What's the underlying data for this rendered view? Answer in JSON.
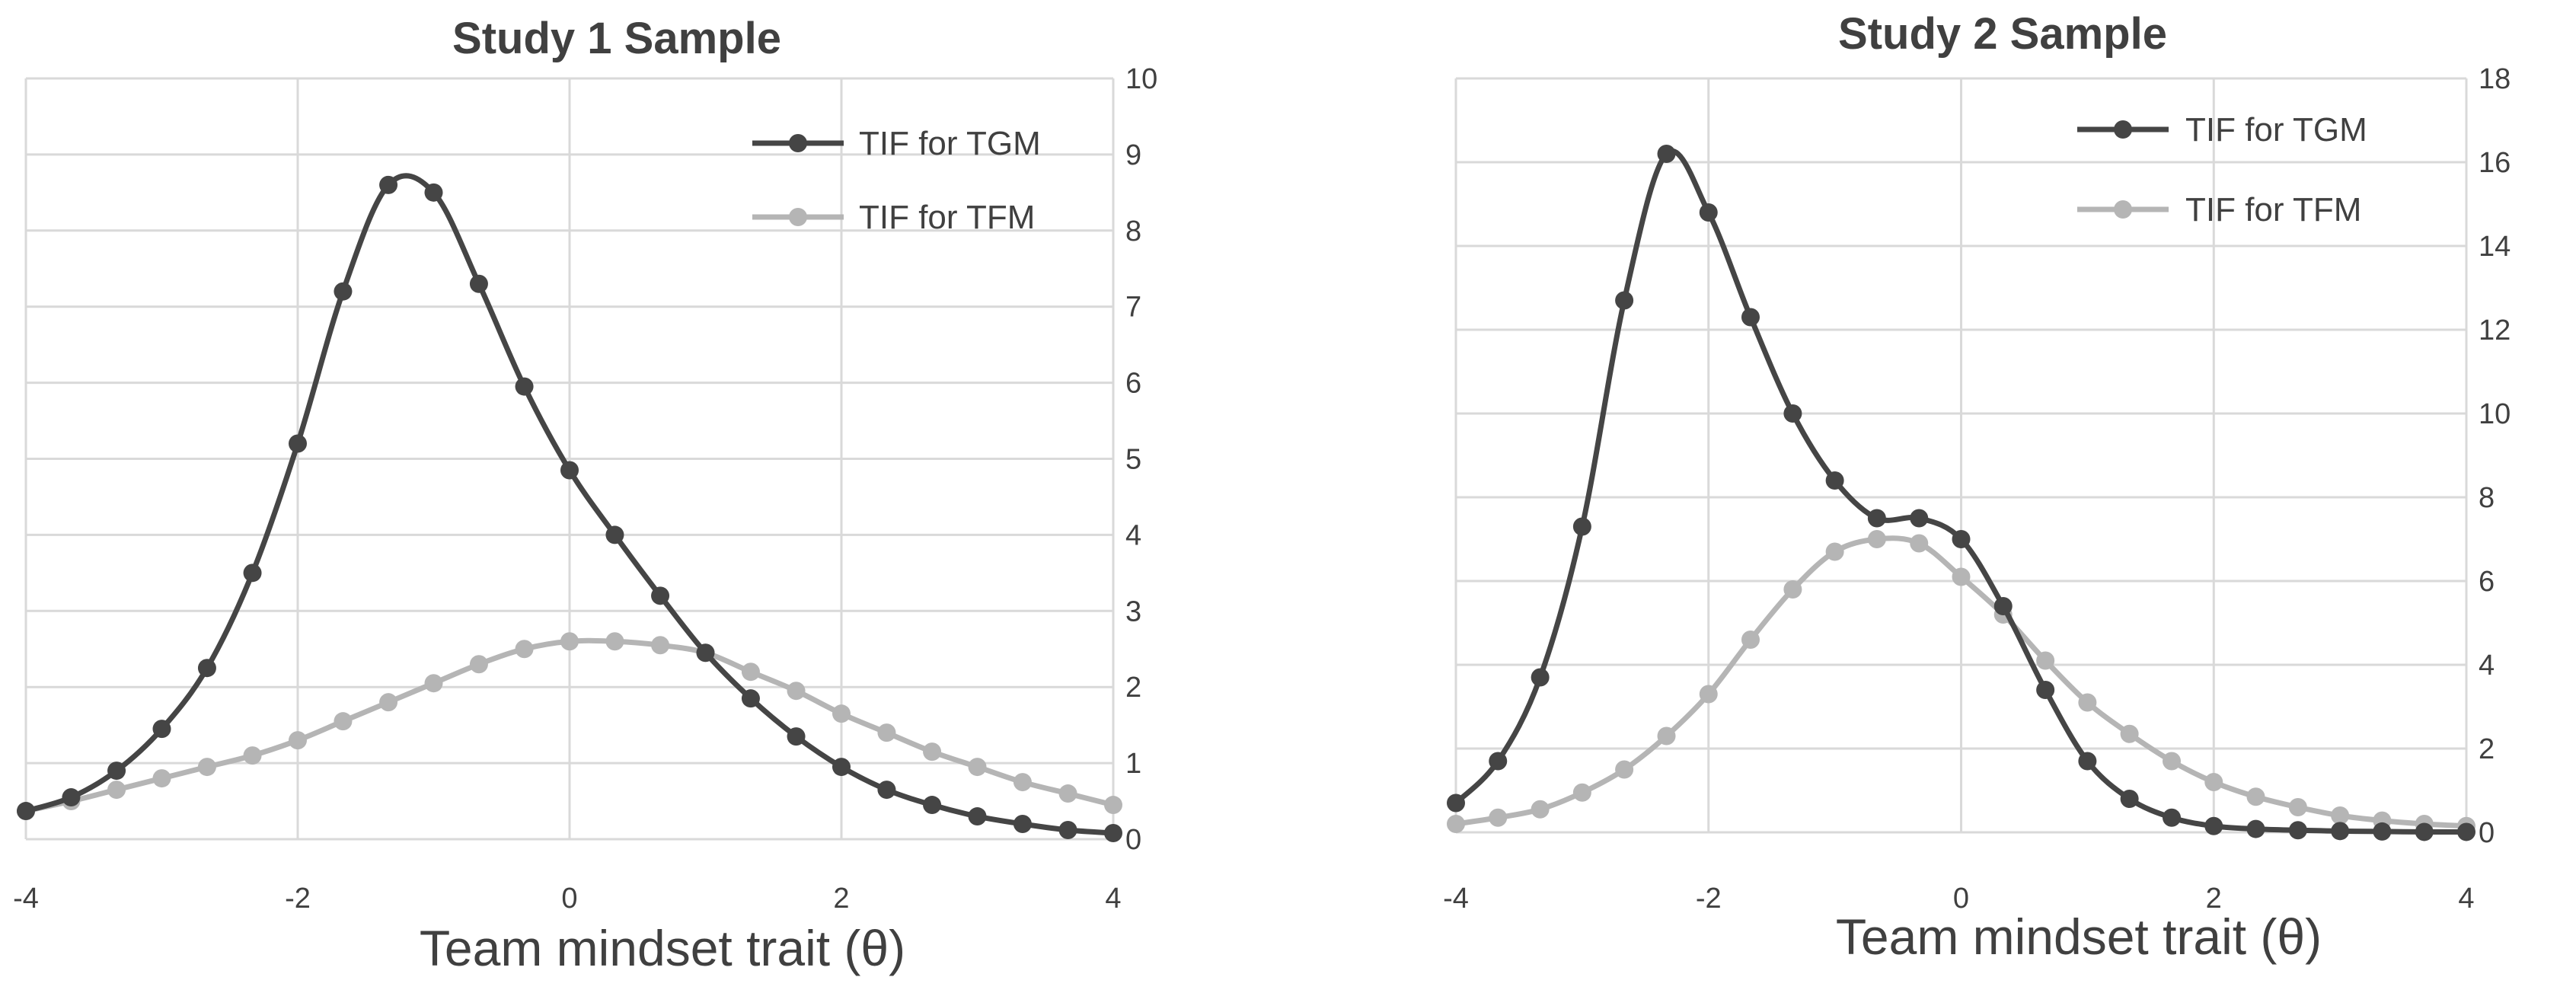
{
  "chart_data": [
    {
      "type": "line",
      "title": "Study 1 Sample",
      "xlabel": "Team mindset trait (θ)",
      "ylabel": "",
      "xlim": [
        -4,
        4
      ],
      "ylim": [
        0,
        10
      ],
      "xticks": [
        -4,
        -2,
        0,
        2,
        4
      ],
      "xtick_labels": [
        "-4",
        "-2",
        "0",
        "2",
        "4"
      ],
      "yticks": [
        0,
        1,
        2,
        3,
        4,
        5,
        6,
        7,
        8,
        9,
        10
      ],
      "ytick_labels": [
        "0",
        "1",
        "2",
        "3",
        "4",
        "5",
        "6",
        "7",
        "8",
        "9",
        "10"
      ],
      "y_axis_side": "right",
      "grid": true,
      "legend_position": "top-right",
      "x": [
        -4,
        -3.667,
        -3.333,
        -3,
        -2.667,
        -2.333,
        -2,
        -1.667,
        -1.333,
        -1,
        -0.667,
        -0.333,
        0,
        0.333,
        0.667,
        1,
        1.333,
        1.667,
        2,
        2.333,
        2.667,
        3,
        3.333,
        3.667,
        4
      ],
      "series": [
        {
          "name": "TIF for TGM",
          "color": "#454545",
          "values": [
            0.37,
            0.55,
            0.9,
            1.45,
            2.25,
            3.5,
            5.2,
            7.2,
            8.6,
            8.5,
            7.3,
            5.95,
            4.85,
            4.0,
            3.2,
            2.45,
            1.85,
            1.35,
            0.95,
            0.65,
            0.45,
            0.3,
            0.2,
            0.12,
            0.08
          ]
        },
        {
          "name": "TIF for TFM",
          "color": "#b5b5b5",
          "values": [
            0.37,
            0.5,
            0.65,
            0.8,
            0.95,
            1.1,
            1.3,
            1.55,
            1.8,
            2.05,
            2.3,
            2.5,
            2.6,
            2.6,
            2.55,
            2.45,
            2.2,
            1.95,
            1.65,
            1.4,
            1.15,
            0.95,
            0.75,
            0.6,
            0.45
          ]
        }
      ]
    },
    {
      "type": "line",
      "title": "Study 2 Sample",
      "xlabel": "Team mindset trait (θ)",
      "ylabel": "",
      "xlim": [
        -4,
        4
      ],
      "ylim": [
        0,
        18
      ],
      "xticks": [
        -4,
        -2,
        0,
        2,
        4
      ],
      "xtick_labels": [
        "-4",
        "-2",
        "0",
        "2",
        "4"
      ],
      "yticks": [
        0,
        2,
        4,
        6,
        8,
        10,
        12,
        14,
        16,
        18
      ],
      "ytick_labels": [
        "0",
        "2",
        "4",
        "6",
        "8",
        "10",
        "12",
        "14",
        "16",
        "18"
      ],
      "y_axis_side": "right",
      "grid": true,
      "legend_position": "top-right",
      "x": [
        -4,
        -3.667,
        -3.333,
        -3,
        -2.667,
        -2.333,
        -2,
        -1.667,
        -1.333,
        -1,
        -0.667,
        -0.333,
        0,
        0.333,
        0.667,
        1,
        1.333,
        1.667,
        2,
        2.333,
        2.667,
        3,
        3.333,
        3.667,
        4
      ],
      "series": [
        {
          "name": "TIF for TGM",
          "color": "#454545",
          "values": [
            0.7,
            1.7,
            3.7,
            7.3,
            12.7,
            16.2,
            14.8,
            12.3,
            10.0,
            8.4,
            7.5,
            7.5,
            7.0,
            5.4,
            3.4,
            1.7,
            0.8,
            0.35,
            0.15,
            0.08,
            0.05,
            0.03,
            0.02,
            0.01,
            0.01
          ]
        },
        {
          "name": "TIF for TFM",
          "color": "#b5b5b5",
          "values": [
            0.2,
            0.35,
            0.55,
            0.95,
            1.5,
            2.3,
            3.3,
            4.6,
            5.8,
            6.7,
            7.0,
            6.9,
            6.1,
            5.2,
            4.1,
            3.1,
            2.35,
            1.7,
            1.2,
            0.85,
            0.6,
            0.4,
            0.28,
            0.2,
            0.15
          ]
        }
      ]
    }
  ]
}
